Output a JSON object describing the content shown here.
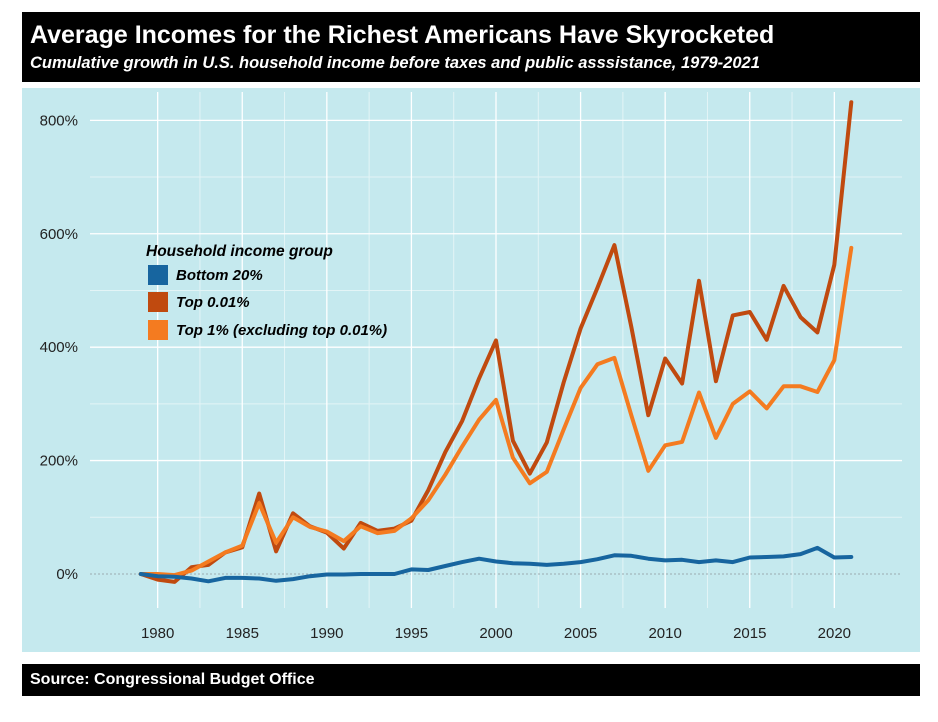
{
  "header": {
    "title": "Average Incomes for the Richest Americans Have Skyrocketed",
    "subtitle": "Cumulative growth in U.S. household income before taxes and public asssistance, 1979-2021"
  },
  "footer": {
    "source": "Source: Congressional Budget Office"
  },
  "colors": {
    "background": "#c5e9ee",
    "bottom20": "#17659f",
    "top001": "#c04a0f",
    "top1": "#f47b20"
  },
  "chart_data": {
    "type": "line",
    "title": "Average Incomes for the Richest Americans Have Skyrocketed",
    "subtitle": "Cumulative growth in U.S. household income before taxes and public asssistance, 1979-2021",
    "xlabel": "",
    "ylabel": "",
    "xlim": [
      1976,
      2024
    ],
    "ylim": [
      -60,
      850
    ],
    "x_ticks": [
      1980,
      1985,
      1990,
      1995,
      2000,
      2005,
      2010,
      2015,
      2020
    ],
    "x_tick_labels": [
      "1980",
      "1985",
      "1990",
      "1995",
      "2000",
      "2005",
      "2010",
      "2015",
      "2020"
    ],
    "y_ticks": [
      0,
      200,
      400,
      600,
      800
    ],
    "y_tick_labels": [
      "0%",
      "200%",
      "400%",
      "600%",
      "800%"
    ],
    "grid": true,
    "legend_title": "Household income group",
    "legend_position": "upper-left",
    "x": [
      1979,
      1980,
      1981,
      1982,
      1983,
      1984,
      1985,
      1986,
      1987,
      1988,
      1989,
      1990,
      1991,
      1992,
      1993,
      1994,
      1995,
      1996,
      1997,
      1998,
      1999,
      2000,
      2001,
      2002,
      2003,
      2004,
      2005,
      2006,
      2007,
      2008,
      2009,
      2010,
      2011,
      2012,
      2013,
      2014,
      2015,
      2016,
      2017,
      2018,
      2019,
      2020,
      2021
    ],
    "series": [
      {
        "name": "Bottom 20%",
        "color": "#17659f",
        "values": [
          0,
          -4,
          -5,
          -8,
          -13,
          -7,
          -7,
          -8,
          -12,
          -9,
          -4,
          -1,
          -1,
          0,
          0,
          0,
          8,
          7,
          14,
          21,
          27,
          22,
          19,
          18,
          16,
          18,
          21,
          26,
          33,
          32,
          27,
          24,
          25,
          21,
          24,
          21,
          29,
          30,
          31,
          35,
          46,
          29,
          30
        ]
      },
      {
        "name": "Top 0.01%",
        "color": "#c04a0f",
        "values": [
          0,
          -10,
          -14,
          12,
          16,
          38,
          47,
          142,
          40,
          107,
          84,
          73,
          45,
          90,
          76,
          80,
          94,
          148,
          215,
          270,
          345,
          412,
          235,
          177,
          232,
          338,
          433,
          505,
          580,
          436,
          280,
          380,
          336,
          517,
          340,
          456,
          462,
          413,
          508,
          453,
          426,
          545,
          832
        ]
      },
      {
        "name": "Top 1% (excluding top 0.01%)",
        "color": "#f47b20",
        "values": [
          0,
          0,
          -2,
          6,
          22,
          38,
          50,
          125,
          55,
          100,
          83,
          75,
          58,
          84,
          72,
          76,
          98,
          130,
          175,
          225,
          272,
          307,
          205,
          160,
          180,
          255,
          328,
          370,
          381,
          280,
          182,
          227,
          233,
          320,
          240,
          300,
          322,
          292,
          331,
          331,
          321,
          377,
          575
        ]
      }
    ]
  }
}
